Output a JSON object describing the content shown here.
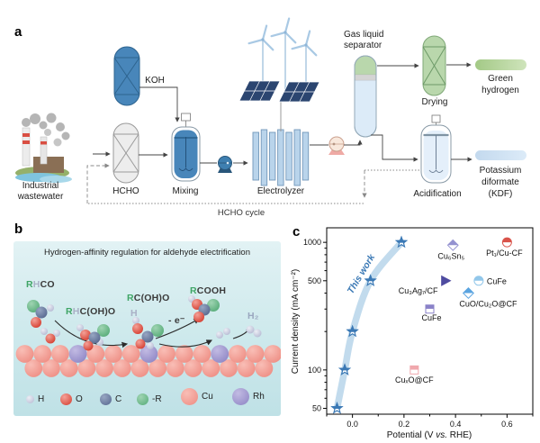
{
  "figure": {
    "panel_a": {
      "label": "a",
      "koh": "KOH",
      "industrial_wastewater": [
        "Industrial",
        "wastewater"
      ],
      "hcho": "HCHO",
      "mixing": "Mixing",
      "electrolyzer": "Electrolyzer",
      "hcho_cycle": "HCHO cycle",
      "gas_liquid_separator": [
        "Gas liquid",
        "separator"
      ],
      "drying": "Drying",
      "green_hydrogen": [
        "Green",
        "hydrogen"
      ],
      "acidification": "Acidification",
      "potassium_diformate": [
        "Potassium",
        "diformate",
        "(KDF)"
      ]
    },
    "panel_b": {
      "label": "b",
      "title": "Hydrogen-affinity regulation for aldehyde electrification",
      "species": {
        "rhco": {
          "r": "R",
          "h": "H",
          "rest": "CO"
        },
        "rhcoho": {
          "r": "R",
          "h": "H",
          "rest": "C(OH)O"
        },
        "rcoho": {
          "r": "R",
          "rest": "C(OH)O",
          "h_below": "H"
        },
        "rcooh": {
          "r": "R",
          "rest": "COOH"
        },
        "electron": "- e⁻",
        "h2": "H₂"
      },
      "legend": [
        {
          "symbol": "H",
          "color": "#c6c9dc"
        },
        {
          "symbol": "O",
          "color": "#dd4437"
        },
        {
          "symbol": "C",
          "color": "#5f6f92"
        },
        {
          "symbol": "-R",
          "color": "#6fbd8c"
        },
        {
          "symbol": "Cu",
          "color": "#f2978f"
        },
        {
          "symbol": "Rh",
          "color": "#958cc8"
        }
      ],
      "surface": {
        "rows": 2,
        "top_count": 15,
        "bottom_count": 14,
        "rh_top_row_positions": [
          3,
          7,
          11
        ],
        "cu_color": "#f2978f",
        "rh_color": "#958cc8"
      }
    },
    "panel_c": {
      "label": "c"
    }
  },
  "chart_data": {
    "type": "scatter",
    "title": "",
    "xlabel": "Potential (V vs. RHE)",
    "xlabel_parts": [
      "Potential (V ",
      "vs.",
      " RHE)"
    ],
    "ylabel": "Current density (mA cm⁻²)",
    "yscale": "log",
    "xlim": [
      -0.1,
      0.7
    ],
    "ylim": [
      45,
      1300
    ],
    "xticks": [
      0.0,
      0.2,
      0.4,
      0.6
    ],
    "x_minor_step": 0.1,
    "yticks": [
      50,
      100,
      500,
      1000
    ],
    "y_minor_ticks": [
      60,
      70,
      80,
      90,
      200,
      300,
      400,
      600,
      700,
      800,
      900
    ],
    "grid": false,
    "annotation": {
      "text": "This work",
      "color": "#3b79b5",
      "rotate_deg": -59
    },
    "series": [
      {
        "name": "This work",
        "marker": "star",
        "color": "#3b79b5",
        "band_color": "#b3d2e8",
        "curve": true,
        "points": [
          [
            -0.06,
            50
          ],
          [
            -0.03,
            100
          ],
          [
            0.0,
            200
          ],
          [
            0.07,
            500
          ],
          [
            0.19,
            1000
          ]
        ]
      },
      {
        "name": "Cu₆Sn₅",
        "marker": "half-diamond",
        "color": "#9492d0",
        "point": [
          0.39,
          950
        ],
        "label": {
          "dx": -2,
          "dy": 15,
          "anchor": "middle"
        }
      },
      {
        "name": "Pt₁/Cu-CF",
        "marker": "half-circle",
        "color": "#d9534a",
        "point": [
          0.6,
          1000
        ],
        "label": {
          "dx": -3,
          "dy": 15,
          "anchor": "middle"
        }
      },
      {
        "name": "Cu₃Ag₇/CF",
        "marker": "triangle-right",
        "color": "#4f4ba0",
        "point": [
          0.36,
          500
        ],
        "label": {
          "dx": -30,
          "dy": 14,
          "anchor": "middle"
        }
      },
      {
        "name": "CuFe",
        "marker": "half-circle",
        "color": "#92c7ea",
        "point": [
          0.49,
          500
        ],
        "label": {
          "dx": 9,
          "dy": 3.5,
          "anchor": "start"
        }
      },
      {
        "name": "CuO/Cu₂O@CF",
        "marker": "half-diamond",
        "color": "#5ba4e0",
        "point": [
          0.45,
          400
        ],
        "label": {
          "dx": 22,
          "dy": 15,
          "anchor": "middle"
        }
      },
      {
        "name": "CuFe",
        "marker": "half-square",
        "color": "#8a82c8",
        "point": [
          0.3,
          300
        ],
        "label": {
          "dx": 2,
          "dy": 13,
          "anchor": "middle"
        }
      },
      {
        "name": "CuₓO@CF",
        "marker": "half-square",
        "color": "#f0a8ad",
        "point": [
          0.24,
          100
        ],
        "label": {
          "dx": 0,
          "dy": 14,
          "anchor": "middle"
        }
      }
    ]
  },
  "colors": {
    "koh_blue": "#4886ba",
    "electrolyzer_plate": "#b9d4eb",
    "green_process": "#b9d7ac",
    "separator_liquid": "#dcebf8",
    "panel_b_background": "#cde9ec",
    "cu_sphere": "#f2978f",
    "rh_sphere": "#958cc8",
    "accent_blue": "#3b79b5"
  }
}
